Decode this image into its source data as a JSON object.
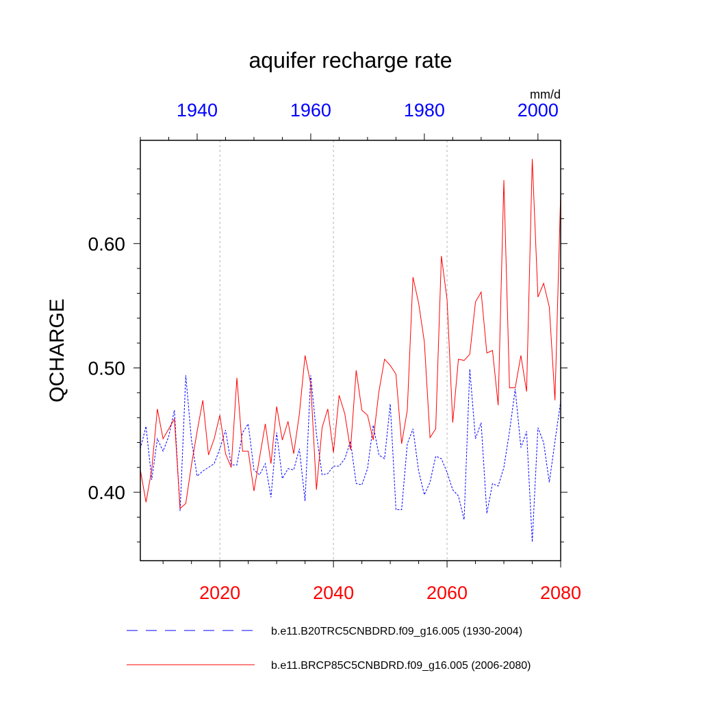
{
  "chart_data": {
    "type": "line",
    "title": "aquifer recharge rate",
    "units": "mm/d",
    "ylabel": "QCHARGE",
    "ylim": [
      0.345,
      0.683
    ],
    "y_ticks": [
      0.4,
      0.5,
      0.6
    ],
    "y_tick_labels": [
      "0.40",
      "0.50",
      "0.60"
    ],
    "grid": "vertical dotted at major x ticks",
    "colors": {
      "top_axis": "#0000ff",
      "bottom_axis": "#ff0000",
      "hist": "#0000ff",
      "fut": "#ff0000",
      "grid": "#b0b0b0",
      "axis": "#000000"
    },
    "x_top": {
      "range": [
        1930,
        2004
      ],
      "major": [
        1940,
        1960,
        1980,
        2000
      ],
      "labels": [
        "1940",
        "1960",
        "1980",
        "2000"
      ]
    },
    "x_bottom": {
      "range": [
        2006,
        2080
      ],
      "major": [
        2020,
        2040,
        2060,
        2080
      ],
      "labels": [
        "2020",
        "2040",
        "2060",
        "2080"
      ]
    },
    "series": [
      {
        "name": "b.e11.B20TRC5CNBDRD.f09_g16.005 (1930-2004)",
        "axis": "top",
        "style": "dashed",
        "x_start": 1930,
        "values": [
          0.435,
          0.453,
          0.41,
          0.443,
          0.433,
          0.445,
          0.466,
          0.385,
          0.494,
          0.442,
          0.413,
          0.417,
          0.42,
          0.423,
          0.435,
          0.45,
          0.422,
          0.422,
          0.448,
          0.455,
          0.418,
          0.414,
          0.423,
          0.396,
          0.448,
          0.411,
          0.419,
          0.418,
          0.435,
          0.393,
          0.494,
          0.447,
          0.414,
          0.415,
          0.421,
          0.421,
          0.427,
          0.441,
          0.407,
          0.406,
          0.419,
          0.454,
          0.43,
          0.427,
          0.471,
          0.386,
          0.386,
          0.439,
          0.451,
          0.417,
          0.398,
          0.408,
          0.429,
          0.427,
          0.416,
          0.402,
          0.397,
          0.378,
          0.499,
          0.443,
          0.456,
          0.383,
          0.407,
          0.405,
          0.42,
          0.449,
          0.483,
          0.436,
          0.449,
          0.36,
          0.452,
          0.44,
          0.408,
          0.441,
          0.473
        ]
      },
      {
        "name": "b.e11.BRCP85C5CNBDRD.f09_g16.005 (2006-2080)",
        "axis": "bottom",
        "style": "solid",
        "x_start": 2006,
        "values": [
          0.418,
          0.392,
          0.418,
          0.467,
          0.443,
          0.451,
          0.459,
          0.387,
          0.391,
          0.422,
          0.449,
          0.474,
          0.43,
          0.443,
          0.462,
          0.431,
          0.42,
          0.492,
          0.433,
          0.433,
          0.401,
          0.428,
          0.455,
          0.423,
          0.469,
          0.442,
          0.457,
          0.431,
          0.463,
          0.51,
          0.487,
          0.402,
          0.452,
          0.467,
          0.432,
          0.478,
          0.463,
          0.434,
          0.498,
          0.466,
          0.462,
          0.442,
          0.481,
          0.507,
          0.502,
          0.495,
          0.439,
          0.466,
          0.573,
          0.552,
          0.521,
          0.444,
          0.451,
          0.59,
          0.555,
          0.456,
          0.507,
          0.506,
          0.511,
          0.553,
          0.561,
          0.512,
          0.514,
          0.47,
          0.651,
          0.484,
          0.484,
          0.51,
          0.481,
          0.668,
          0.557,
          0.568,
          0.549,
          0.474,
          0.641
        ]
      }
    ]
  },
  "legend": {
    "entries": [
      "b.e11.B20TRC5CNBDRD.f09_g16.005 (1930-2004)",
      "b.e11.BRCP85C5CNBDRD.f09_g16.005 (2006-2080)"
    ],
    "placement": "bottom"
  }
}
